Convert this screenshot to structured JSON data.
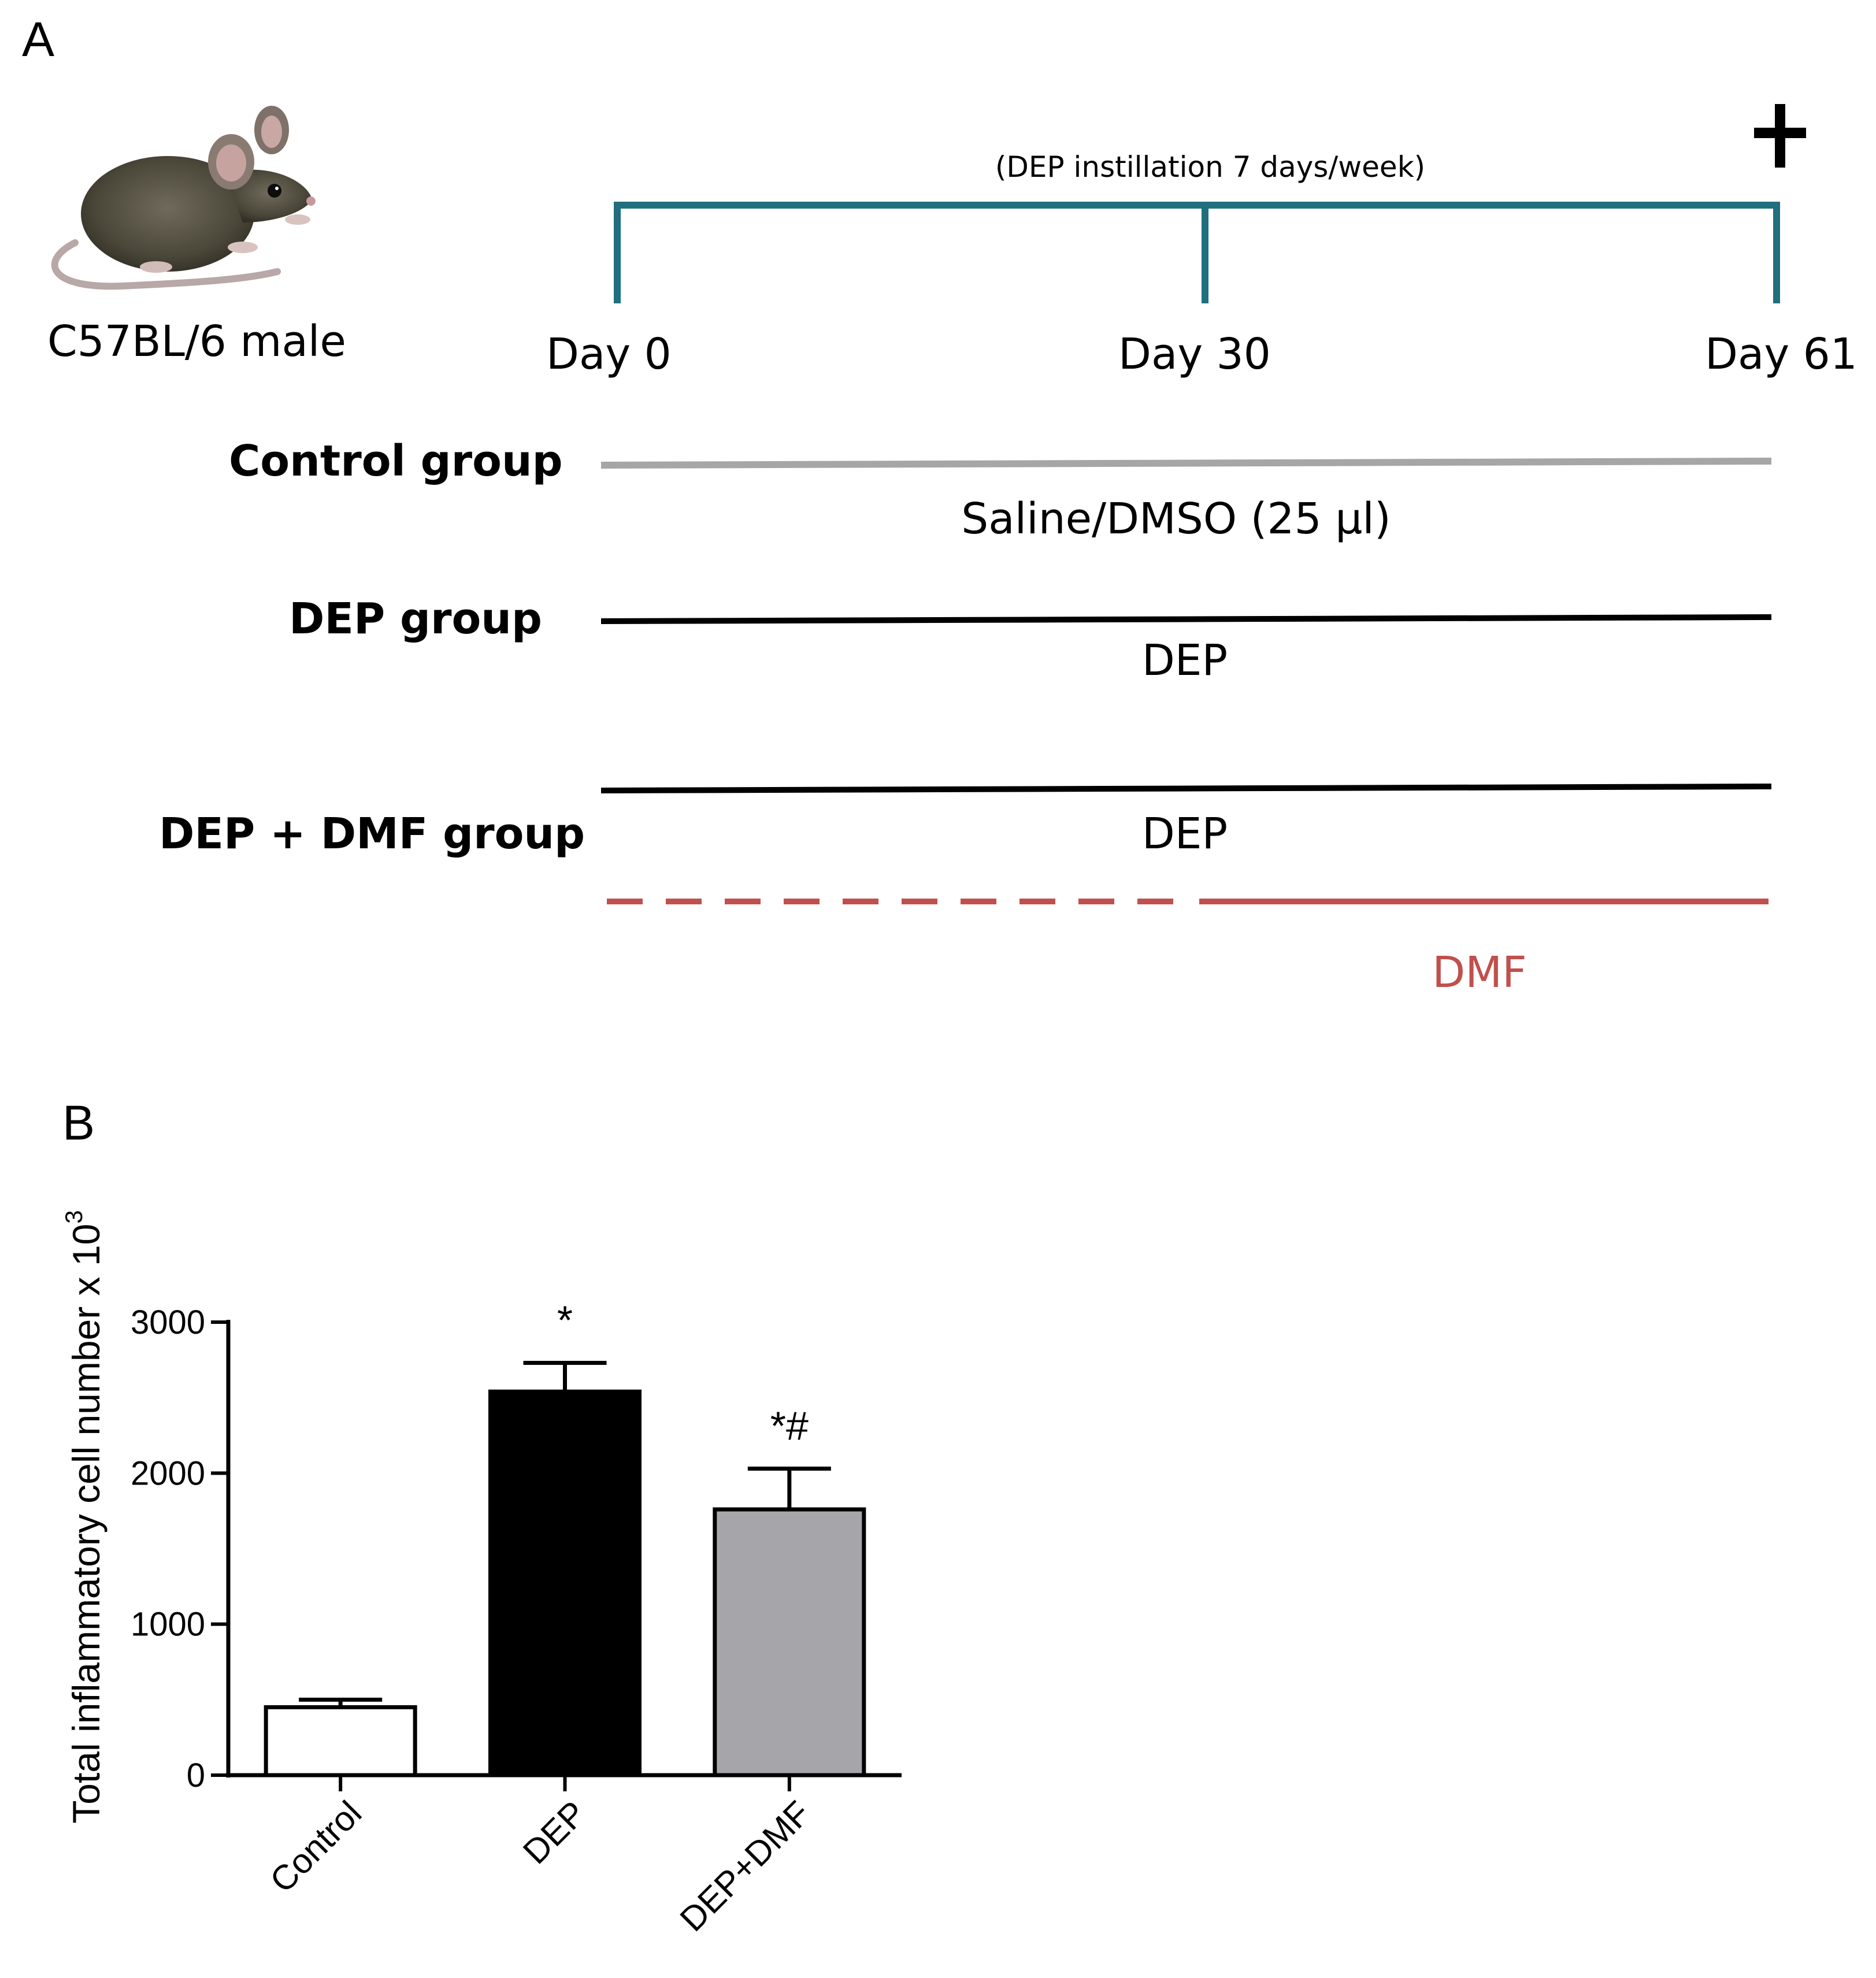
{
  "panel_a": {
    "letter": "A",
    "mouse_label": "C57BL/6 male",
    "timeline": {
      "note": "(DEP instillation 7 days/week)",
      "ticks": [
        {
          "label": "Day 0",
          "day": 0
        },
        {
          "label": "Day 30",
          "day": 30
        },
        {
          "label": "Day 61",
          "day": 61
        }
      ],
      "end_marker": "+"
    },
    "groups": [
      {
        "name": "Control group",
        "line_label": "Saline/DMSO (25 µl)",
        "line_color": "#a6a6a6"
      },
      {
        "name": "DEP group",
        "line_label": "DEP",
        "line_color": "#000000"
      },
      {
        "name": "DEP + DMF group",
        "line_label": "DEP",
        "line_color": "#000000",
        "extra_line_label": "DMF",
        "extra_line_color": "#c0504d"
      }
    ],
    "colors": {
      "timeline": "#1f6f7f",
      "dmf": "#c0504d"
    }
  },
  "panel_b": {
    "letter": "B",
    "chart_data": {
      "type": "bar",
      "categories": [
        "Control",
        "DEP",
        "DEP+DMF"
      ],
      "values": [
        450,
        2540,
        1760
      ],
      "errors": [
        50,
        190,
        270
      ],
      "annotations": [
        "",
        "*",
        "*#"
      ],
      "bar_colors": [
        "#ffffff",
        "#000000",
        "#a6a6aa"
      ],
      "ylabel": "Total inflammatory cell number x 10",
      "ylabel_superscript": "3",
      "ylim": [
        0,
        3000
      ],
      "yticks": [
        "0",
        "1000",
        "2000",
        "3000"
      ],
      "grid": false
    }
  }
}
